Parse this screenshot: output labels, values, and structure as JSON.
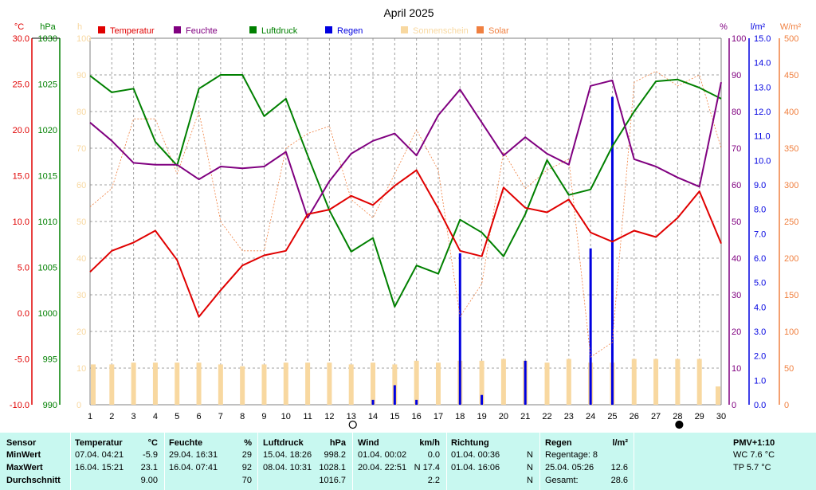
{
  "chart_data": {
    "type": "line",
    "title": "April 2025",
    "categories": [
      "1",
      "2",
      "3",
      "4",
      "5",
      "6",
      "7",
      "8",
      "9",
      "10",
      "11",
      "12",
      "13",
      "14",
      "15",
      "16",
      "17",
      "18",
      "19",
      "20",
      "21",
      "22",
      "23",
      "24",
      "25",
      "26",
      "27",
      "28",
      "29",
      "30"
    ],
    "axes": {
      "temp": {
        "unit": "°C",
        "ticks": [
          "30.0",
          "25.0",
          "20.0",
          "15.0",
          "10.0",
          "5.0",
          "0.0",
          "-5.0",
          "-10.0"
        ],
        "range": [
          -10,
          30
        ]
      },
      "pressure": {
        "unit": "hPa",
        "ticks": [
          "1030",
          "1025",
          "1020",
          "1015",
          "1010",
          "1005",
          "1000",
          "995",
          "990"
        ],
        "range": [
          990,
          1030
        ]
      },
      "sun_hours": {
        "unit": "h",
        "ticks": [
          "100",
          "90",
          "80",
          "70",
          "60",
          "50",
          "40",
          "30",
          "20",
          "10",
          "0"
        ],
        "range": [
          0,
          100
        ]
      },
      "humidity": {
        "unit": "%",
        "ticks": [
          "100",
          "90",
          "80",
          "70",
          "60",
          "50",
          "40",
          "30",
          "20",
          "10",
          "0"
        ],
        "range": [
          0,
          100
        ]
      },
      "rain": {
        "unit": "l/m²",
        "ticks": [
          "15.0",
          "14.0",
          "13.0",
          "12.0",
          "11.0",
          "10.0",
          "9.0",
          "8.0",
          "7.0",
          "6.0",
          "5.0",
          "4.0",
          "3.0",
          "2.0",
          "1.0",
          "0.0"
        ],
        "range": [
          0,
          15
        ]
      },
      "solar": {
        "unit": "W/m²",
        "ticks": [
          "500",
          "450",
          "400",
          "350",
          "300",
          "250",
          "200",
          "150",
          "100",
          "50",
          "0"
        ],
        "range": [
          0,
          500
        ]
      }
    },
    "legend": [
      {
        "label": "Temperatur",
        "color": "#e00000"
      },
      {
        "label": "Feuchte",
        "color": "#800080"
      },
      {
        "label": "Luftdruck",
        "color": "#008000"
      },
      {
        "label": "Regen",
        "color": "#0000e0"
      },
      {
        "label": "Sonnenschein",
        "color": "#f8d8a0"
      },
      {
        "label": "Solar",
        "color": "#f08040"
      }
    ],
    "series": [
      {
        "name": "Temperatur",
        "axis": "temp",
        "values": [
          4.5,
          6.8,
          7.7,
          9.0,
          5.8,
          -0.4,
          2.5,
          5.2,
          6.3,
          6.8,
          10.8,
          11.3,
          12.8,
          11.8,
          13.9,
          15.6,
          11.4,
          6.8,
          6.2,
          13.7,
          11.5,
          11.0,
          12.4,
          8.8,
          7.8,
          9.0,
          8.3,
          10.4,
          13.3,
          7.6
        ]
      },
      {
        "name": "Feuchte",
        "axis": "humidity",
        "values": [
          77,
          72,
          66,
          65.5,
          65.5,
          61.5,
          65,
          64.5,
          65,
          69,
          51,
          61,
          68.5,
          72,
          74,
          68,
          79,
          86,
          77,
          68,
          73,
          68.5,
          65.5,
          87,
          88.5,
          67,
          65,
          62,
          59.5,
          88
        ]
      },
      {
        "name": "Luftdruck",
        "axis": "pressure",
        "values": [
          1025.9,
          1024.1,
          1024.5,
          1018.7,
          1016.1,
          1024.5,
          1026.0,
          1026.0,
          1021.5,
          1023.4,
          1017.2,
          1011.2,
          1006.7,
          1008.2,
          1000.7,
          1005.2,
          1004.3,
          1010.2,
          1008.8,
          1006.2,
          1010.8,
          1016.7,
          1012.9,
          1013.5,
          1018.2,
          1022.0,
          1025.3,
          1025.5,
          1024.6,
          1023.4
        ]
      },
      {
        "name": "Regen",
        "axis": "rain",
        "values": [
          0,
          0,
          0,
          0,
          0,
          0,
          0,
          0,
          0,
          0,
          0,
          0,
          0,
          0.2,
          0.8,
          0.2,
          0,
          6.2,
          0.4,
          0,
          1.8,
          0,
          0,
          6.4,
          12.6,
          0,
          0,
          0,
          0,
          0
        ]
      },
      {
        "name": "Sonnenschein",
        "axis": "sun_hours",
        "values": [
          11,
          11,
          11.5,
          11.5,
          11.5,
          11.5,
          11,
          10.5,
          11,
          11.5,
          11.5,
          11.5,
          11,
          11.5,
          11,
          12,
          11.5,
          12,
          12,
          12.5,
          12,
          11.5,
          12.5,
          11.5,
          11.5,
          12.5,
          12.5,
          12.5,
          12.5,
          5
        ]
      },
      {
        "name": "Solar",
        "axis": "solar",
        "values": [
          270,
          295,
          390,
          390,
          315,
          400,
          250,
          210,
          210,
          350,
          370,
          380,
          280,
          255,
          315,
          375,
          320,
          120,
          165,
          345,
          295,
          320,
          335,
          65,
          85,
          440,
          455,
          435,
          450,
          350
        ]
      }
    ],
    "moon_phases": [
      {
        "day": "13",
        "phase": "full-moon"
      },
      {
        "day": "28",
        "phase": "new-moon"
      }
    ]
  },
  "stats": {
    "sensor": {
      "header": "Sensor",
      "min": "MinWert",
      "max": "MaxWert",
      "avg": "Durchschnitt"
    },
    "temperatur": {
      "header": "Temperatur",
      "unit": "°C",
      "min_ts": "07.04.  04:21",
      "min_val": "-5.9",
      "max_ts": "16.04.  15:21",
      "max_val": "23.1",
      "avg_val": "9.00"
    },
    "feuchte": {
      "header": "Feuchte",
      "unit": "%",
      "min_ts": "29.04.  16:31",
      "min_val": "29",
      "max_ts": "16.04.  07:41",
      "max_val": "92",
      "avg_val": "70"
    },
    "luftdruck": {
      "header": "Luftdruck",
      "unit": "hPa",
      "min_ts": "15.04.  18:26",
      "min_val": "998.2",
      "max_ts": "08.04.  10:31",
      "max_val": "1028.1",
      "avg_val": "1016.7"
    },
    "wind": {
      "header": "Wind",
      "unit": "km/h",
      "min_ts": "01.04.  00:02",
      "min_val": "0.0",
      "max_ts": "20.04.  22:51",
      "max_val": "N 17.4",
      "avg_val": "2.2"
    },
    "richtung": {
      "header": "Richtung",
      "min_ts": "01.04.  00:36",
      "min_val": "N",
      "max_ts": "01.04.  16:06",
      "max_val": "N",
      "avg_val": "N"
    },
    "regen": {
      "header": "Regen",
      "unit": "l/m²",
      "row1": "Regentage: 8",
      "row2_ts": "25.04.  05:26",
      "row2_val": "12.6",
      "row3_label": "Gesamt:",
      "row3_val": "28.6"
    },
    "pmv": {
      "header": "PMV+1:10",
      "wc": "WC 7.6 °C",
      "tp": "TP 5.7 °C"
    }
  }
}
